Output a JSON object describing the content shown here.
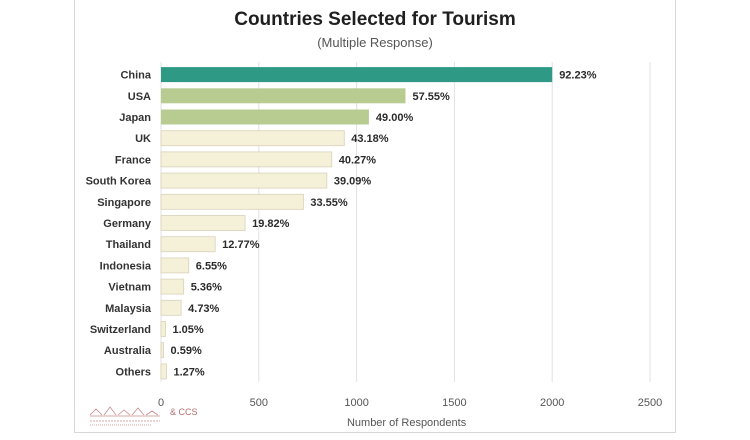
{
  "chart_data": {
    "type": "bar",
    "orientation": "horizontal",
    "title": "Countries Selected for Tourism",
    "subtitle": "(Multiple Response)",
    "xlabel": "Number of Respondents",
    "ylabel": "",
    "xlim": [
      0,
      2500
    ],
    "xticks": [
      0,
      500,
      1000,
      1500,
      2000,
      2500
    ],
    "grid": true,
    "categories": [
      "China",
      "USA",
      "Japan",
      "UK",
      "France",
      "South Korea",
      "Singapore",
      "Germany",
      "Thailand",
      "Indonesia",
      "Vietnam",
      "Malaysia",
      "Switzerland",
      "Australia",
      "Others"
    ],
    "values": [
      2000,
      1250,
      1063,
      937,
      873,
      848,
      728,
      430,
      277,
      142,
      116,
      103,
      23,
      13,
      28
    ],
    "data_labels": [
      "92.23%",
      "57.55%",
      "49.00%",
      "43.18%",
      "40.27%",
      "39.09%",
      "33.55%",
      "19.82%",
      "12.77%",
      "6.55%",
      "5.36%",
      "4.73%",
      "1.05%",
      "0.59%",
      "1.27%"
    ],
    "colors": {
      "top": "#2e9a86",
      "second_tier": "#b8cc92",
      "rest": "#f5f0d8",
      "bar_border": "#d8d2b8",
      "grid": "#e2e2e2"
    },
    "color_tiers": [
      "top",
      "second_tier",
      "second_tier",
      "rest",
      "rest",
      "rest",
      "rest",
      "rest",
      "rest",
      "rest",
      "rest",
      "rest",
      "rest",
      "rest",
      "rest"
    ]
  },
  "watermark": {
    "text": "& CCS"
  }
}
